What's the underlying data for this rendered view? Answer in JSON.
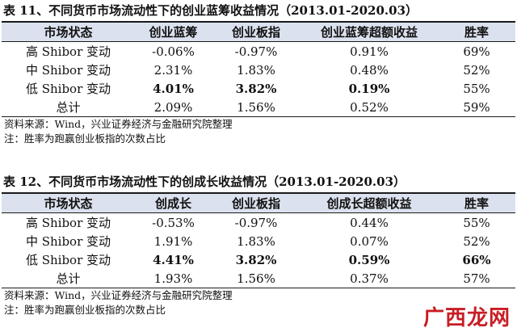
{
  "table1": {
    "title": "表 11、不同货币市场流动性下的创业蓝筹收益情况（2013.01-2020.03）",
    "headers": [
      "市场状态",
      "创业蓝筹",
      "创业板指",
      "创业蓝筹超额收益",
      "胜率"
    ],
    "rows": [
      {
        "state": "高 Shibor 变动",
        "c1": "-0.06%",
        "c2": "-0.97%",
        "c3": "0.91%",
        "c4": "69%",
        "bold": [
          false,
          false,
          false,
          false
        ]
      },
      {
        "state": "中 Shibor 变动",
        "c1": "2.31%",
        "c2": "1.83%",
        "c3": "0.48%",
        "c4": "52%",
        "bold": [
          false,
          false,
          false,
          false
        ]
      },
      {
        "state": "低 Shibor 变动",
        "c1": "4.01%",
        "c2": "3.82%",
        "c3": "0.19%",
        "c4": "55%",
        "bold": [
          true,
          true,
          true,
          false
        ]
      },
      {
        "state": "总计",
        "c1": "2.09%",
        "c2": "1.56%",
        "c3": "0.52%",
        "c4": "59%",
        "bold": [
          false,
          false,
          false,
          false
        ]
      }
    ],
    "source": "资料来源：Wind，兴业证券经济与金融研究院整理",
    "note": "注：胜率为跑赢创业板指的次数占比"
  },
  "table2": {
    "title": "表 12、不同货币市场流动性下的创成长收益情况（2013.01-2020.03）",
    "headers": [
      "市场状态",
      "创成长",
      "创业板指",
      "创成长超额收益",
      "胜率"
    ],
    "rows": [
      {
        "state": "高 Shibor 变动",
        "c1": "-0.53%",
        "c2": "-0.97%",
        "c3": "0.44%",
        "c4": "55%",
        "bold": [
          false,
          false,
          false,
          false
        ]
      },
      {
        "state": "中 Shibor 变动",
        "c1": "1.91%",
        "c2": "1.83%",
        "c3": "0.07%",
        "c4": "52%",
        "bold": [
          false,
          false,
          false,
          false
        ]
      },
      {
        "state": "低 Shibor 变动",
        "c1": "4.41%",
        "c2": "3.82%",
        "c3": "0.59%",
        "c4": "66%",
        "bold": [
          true,
          true,
          true,
          true
        ]
      },
      {
        "state": "总计",
        "c1": "1.93%",
        "c2": "1.56%",
        "c3": "0.37%",
        "c4": "57%",
        "bold": [
          false,
          false,
          false,
          false
        ]
      }
    ],
    "source": "资料来源：Wind，兴业证券经济与金融研究院整理",
    "note": "注：胜率为跑赢创业板指的次数占比"
  },
  "watermark": {
    "text": "广西龙网",
    "color": "#c81d25"
  },
  "colors": {
    "header_bg": "#dbe1ee",
    "rule": "#1a1a1a"
  }
}
